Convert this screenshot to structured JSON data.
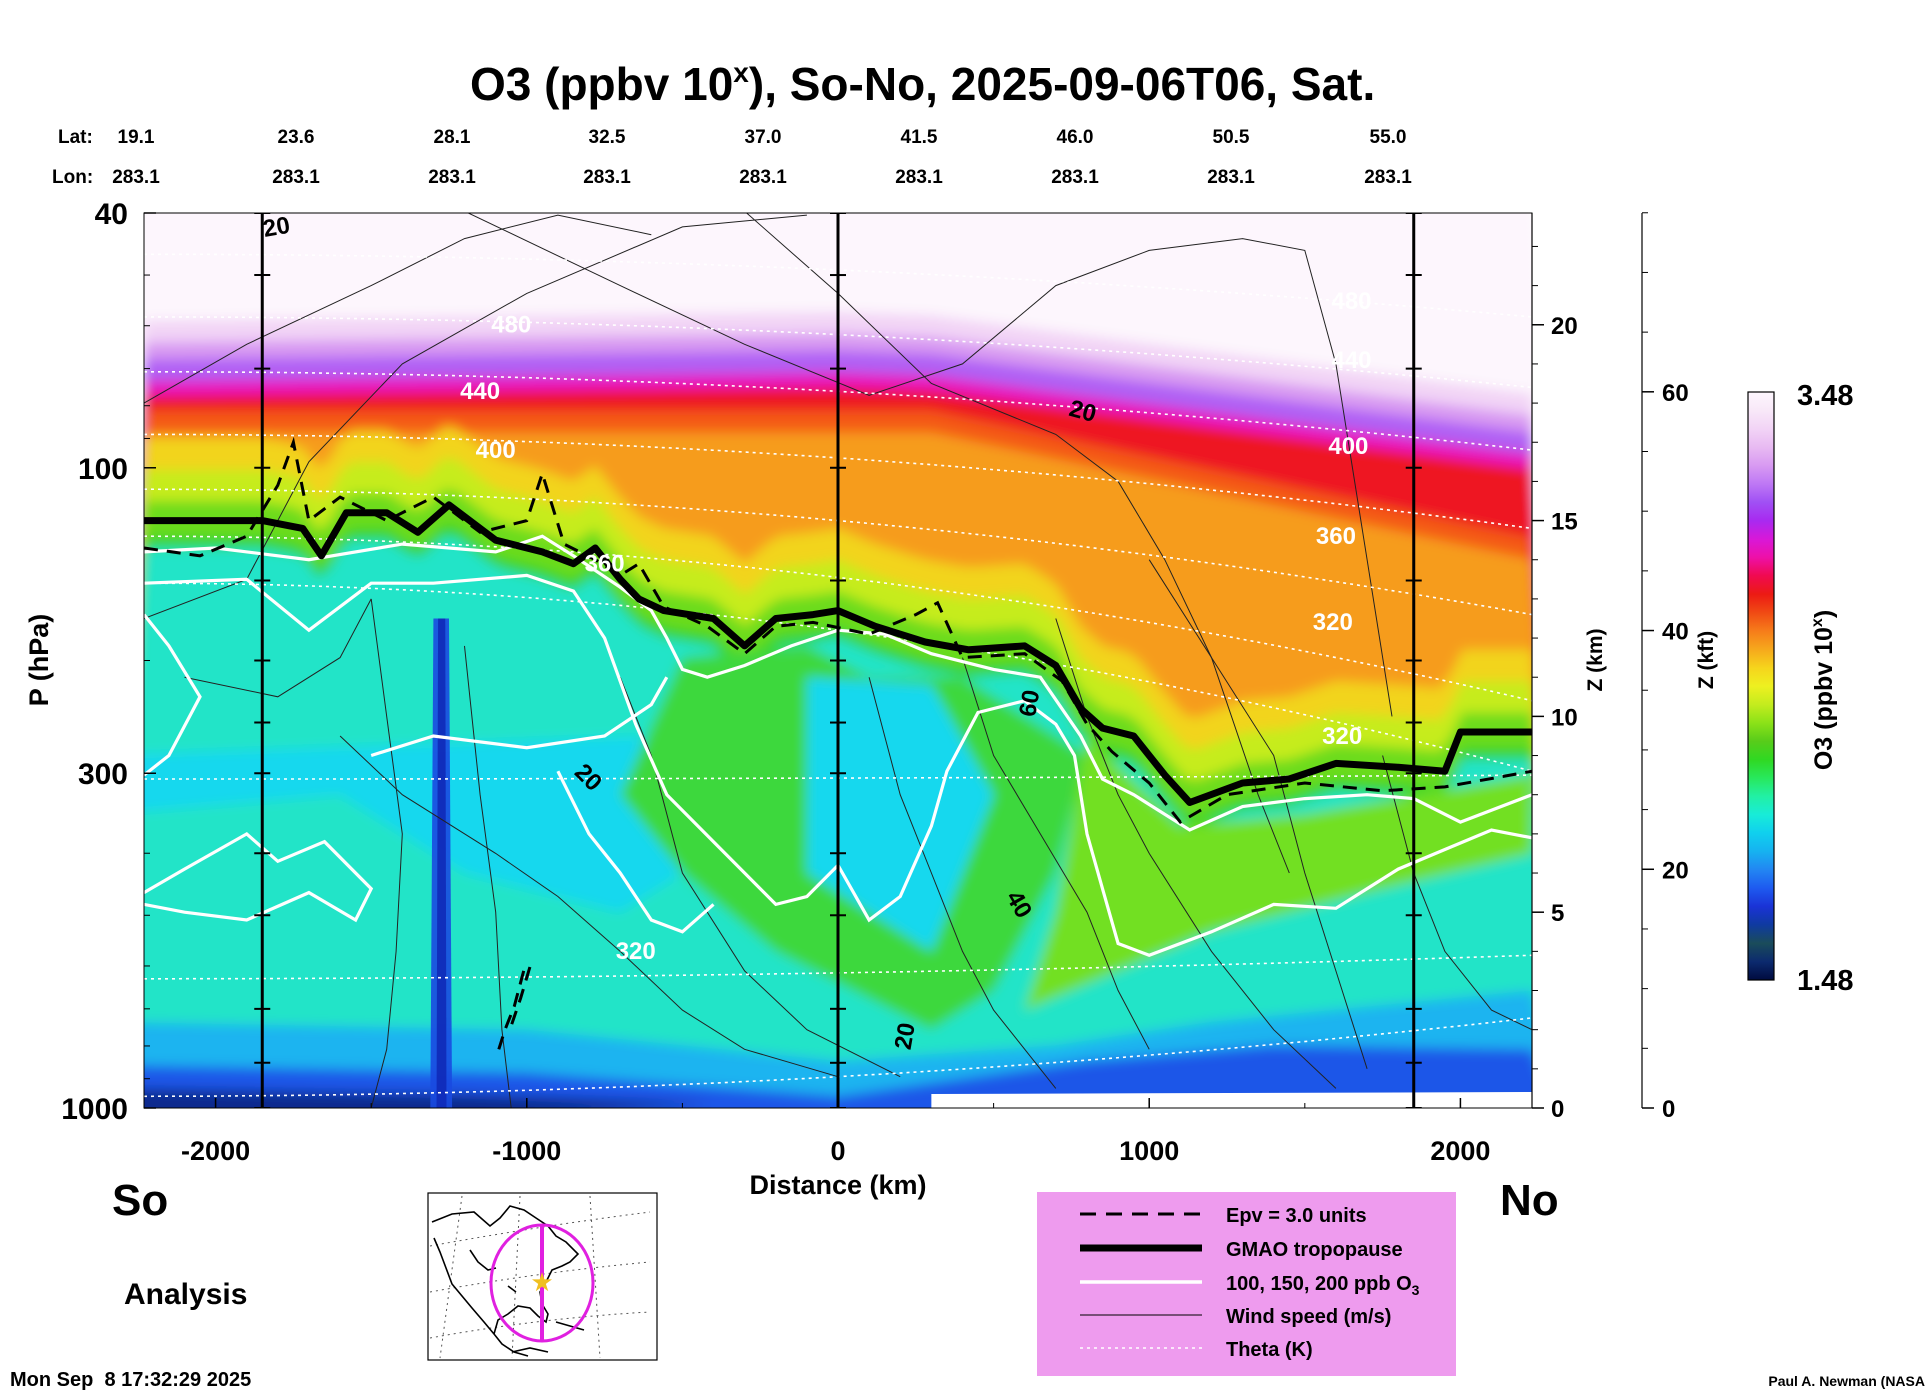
{
  "chart_data": {
    "type": "heatmap",
    "title_main": "O3 (ppbv 10",
    "title_sup": "x",
    "title_rest": "), So-No, 2025-09-06T06, Sat.",
    "xlabel": "Distance (km)",
    "ylabel": "P (hPa)",
    "z_km_label": "Z (km)",
    "z_kft_label": "Z (kft)",
    "colorbar_label": "O3 (ppbv 10",
    "colorbar_label_sup": "x",
    "colorbar_label_end": ")",
    "colorbar_max": "3.48",
    "colorbar_min": "1.48",
    "colorbar_range": [
      1.48,
      3.48
    ],
    "x_range": [
      -2230,
      2230
    ],
    "x_ticks": [
      -2000,
      -1000,
      0,
      1000,
      2000
    ],
    "p_range": [
      1000,
      40
    ],
    "p_log_scale": true,
    "p_ticks": [
      1000,
      300,
      100,
      40
    ],
    "z_km_ticks": [
      0,
      5,
      10,
      15,
      20
    ],
    "z_kft_ticks": [
      0,
      20,
      40,
      60
    ],
    "lat_label": "Lat:",
    "lon_label": "Lon:",
    "lat_values": [
      "19.1",
      "23.6",
      "28.1",
      "32.5",
      "37.0",
      "41.5",
      "46.0",
      "50.5",
      "55.0"
    ],
    "lon_values": [
      "283.1",
      "283.1",
      "283.1",
      "283.1",
      "283.1",
      "283.1",
      "283.1",
      "283.1",
      "283.1"
    ],
    "south_label": "So",
    "north_label": "No",
    "analysis_label": "Analysis",
    "timestamp": "Mon Sep  8 17:32:29 2025",
    "credit": "Paul A. Newman (NASA",
    "theta_labels": [
      "480",
      "440",
      "400",
      "360",
      "320",
      "480",
      "440",
      "400",
      "360",
      "320",
      "320"
    ],
    "wind_labels": [
      "20",
      "20",
      "20",
      "60",
      "40",
      "20"
    ],
    "tropopause_km": [
      [
        -2230,
        15.0
      ],
      [
        -1850,
        15.0
      ],
      [
        -1720,
        14.8
      ],
      [
        -1660,
        14.1
      ],
      [
        -1580,
        15.2
      ],
      [
        -1450,
        15.2
      ],
      [
        -1350,
        14.7
      ],
      [
        -1250,
        15.4
      ],
      [
        -1100,
        14.5
      ],
      [
        -950,
        14.2
      ],
      [
        -850,
        13.9
      ],
      [
        -780,
        14.3
      ],
      [
        -700,
        13.5
      ],
      [
        -640,
        13.0
      ],
      [
        -560,
        12.7
      ],
      [
        -400,
        12.5
      ],
      [
        -300,
        11.8
      ],
      [
        -200,
        12.5
      ],
      [
        -80,
        12.6
      ],
      [
        0,
        12.7
      ],
      [
        120,
        12.3
      ],
      [
        280,
        11.9
      ],
      [
        420,
        11.7
      ],
      [
        600,
        11.8
      ],
      [
        700,
        11.3
      ],
      [
        780,
        10.2
      ],
      [
        850,
        9.7
      ],
      [
        950,
        9.5
      ],
      [
        1050,
        8.5
      ],
      [
        1130,
        7.8
      ],
      [
        1300,
        8.3
      ],
      [
        1450,
        8.4
      ],
      [
        1600,
        8.8
      ],
      [
        1800,
        8.7
      ],
      [
        1950,
        8.6
      ],
      [
        2000,
        9.6
      ],
      [
        2230,
        9.6
      ]
    ],
    "colorbar_colors": [
      "#000b3f",
      "#0c2a6e",
      "#1a4c5a",
      "#0f3aa0",
      "#1a33d6",
      "#1e5af0",
      "#2286f2",
      "#16b2f0",
      "#10d0ee",
      "#18ecd8",
      "#22f0a4",
      "#28e85c",
      "#30d822",
      "#58cc1a",
      "#8ce218",
      "#c4ec1e",
      "#eef020",
      "#f6d41c",
      "#f6a81c",
      "#f67c1a",
      "#f04a14",
      "#ec1a14",
      "#f00a50",
      "#ee10a8",
      "#d818d8",
      "#a82af0",
      "#a050f4",
      "#be78f4",
      "#d89af2",
      "#e8baf2",
      "#f2d4f6",
      "#f8e8f8",
      "#fdf6fd"
    ],
    "legend": [
      {
        "style": "dashed",
        "label": "Epv = 3.0 units"
      },
      {
        "style": "thick",
        "label": "GMAO tropopause"
      },
      {
        "style": "white",
        "label": "100, 150, 200 ppb O"
      },
      {
        "style": "thin",
        "label": "Wind speed (m/s)"
      },
      {
        "style": "dotted",
        "label": "Theta (K)"
      }
    ],
    "legend_o3_sub": "3",
    "legend_bg": "#ee9bee",
    "map_track_color": "#e020e0",
    "map_marker_color": "#f0c020"
  }
}
